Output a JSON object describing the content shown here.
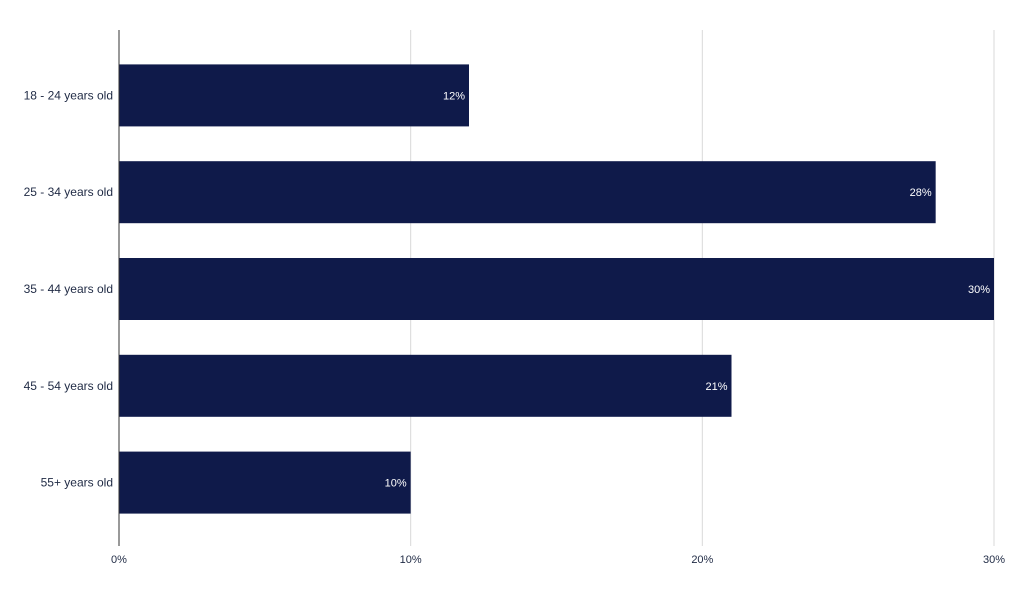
{
  "chart_data": {
    "type": "bar",
    "orientation": "horizontal",
    "categories": [
      "18 - 24 years old",
      "25 - 34 years old",
      "35 - 44 years old",
      "45 - 54 years old",
      "55+ years old"
    ],
    "values": [
      12,
      28,
      30,
      21,
      10
    ],
    "data_labels": [
      "12%",
      "28%",
      "30%",
      "21%",
      "10%"
    ],
    "xlim": [
      0,
      30
    ],
    "xticks": [
      0,
      10,
      20,
      30
    ],
    "xtick_labels": [
      "0%",
      "10%",
      "20%",
      "30%"
    ],
    "title": "",
    "xlabel": "",
    "ylabel": "",
    "grid": true,
    "legend": "none",
    "colors": {
      "bar": "#0f1a4a",
      "grid": "#d9d9d9",
      "axis": "#333333",
      "text": "#1f2a44",
      "data_label": "#ffffff"
    }
  }
}
